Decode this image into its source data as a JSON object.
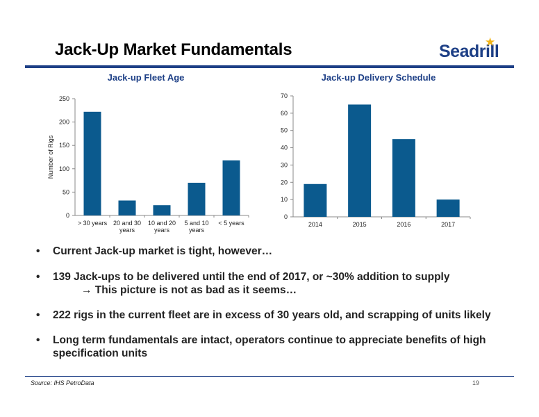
{
  "slide": {
    "title": "Jack-Up Market Fundamentals",
    "logo_text": "Seadrill",
    "source": "Source: IHS PetroData",
    "page_number": "19"
  },
  "bullets": [
    {
      "text": "Current Jack-up  market is tight, however…"
    },
    {
      "text": "139 Jack-ups to be delivered until the end of 2017, or ~30% addition to supply",
      "subline": "→ This picture is not as bad as it seems…"
    },
    {
      "text": "222 rigs in the current fleet are in excess of 30 years old, and scrapping of units likely"
    },
    {
      "text": "Long term fundamentals are intact, operators continue to appreciate benefits of high specification units"
    }
  ],
  "colors": {
    "bar": "#0b5a8e",
    "accent": "#1d3f86",
    "logo_star": "#f2b418"
  },
  "chart_data": [
    {
      "type": "bar",
      "title": "Jack-up Fleet Age",
      "ylabel": "Number of Rigs",
      "xlabel": "",
      "categories": [
        [
          "> 30 years"
        ],
        [
          "20 and 30",
          "years"
        ],
        [
          "10 and 20",
          "years"
        ],
        [
          "5 and 10",
          "years"
        ],
        [
          "< 5 years"
        ]
      ],
      "values": [
        222,
        32,
        22,
        70,
        118
      ],
      "ylim": [
        0,
        250
      ],
      "yticks": [
        0,
        50,
        100,
        150,
        200,
        250
      ],
      "grid": false,
      "legend": "none"
    },
    {
      "type": "bar",
      "title": "Jack-up Delivery Schedule",
      "ylabel": "",
      "xlabel": "",
      "categories": [
        [
          "2014"
        ],
        [
          "2015"
        ],
        [
          "2016"
        ],
        [
          "2017"
        ]
      ],
      "values": [
        19,
        65,
        45,
        10
      ],
      "ylim": [
        0,
        70
      ],
      "yticks": [
        0,
        10,
        20,
        30,
        40,
        50,
        60,
        70
      ],
      "grid": false,
      "legend": "none"
    }
  ]
}
